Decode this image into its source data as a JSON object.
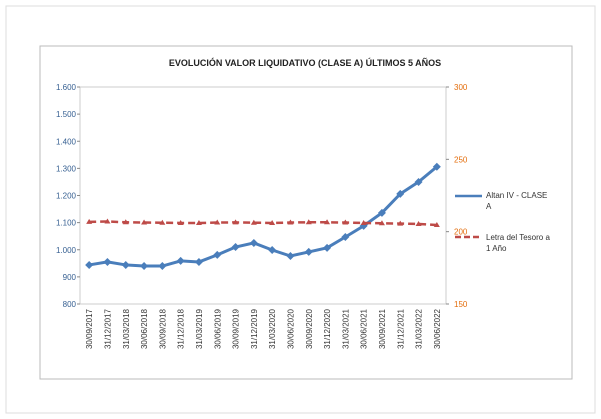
{
  "chart_data": {
    "type": "line",
    "title": "EVOLUCIÓN VALOR LIQUIDATIVO (CLASE A) ÚLTIMOS 5 AÑOS",
    "categories": [
      "30/09/2017",
      "31/12/2017",
      "31/03/2018",
      "30/06/2018",
      "30/09/2018",
      "31/12/2018",
      "31/03/2019",
      "30/06/2019",
      "30/09/2019",
      "31/12/2019",
      "31/03/2020",
      "30/06/2020",
      "30/09/2020",
      "31/12/2020",
      "31/03/2021",
      "30/06/2021",
      "30/09/2021",
      "31/12/2021",
      "31/03/2022",
      "30/06/2022"
    ],
    "series": [
      {
        "name": "Altan IV - CLASE A",
        "color": "#4a7ebb",
        "values": [
          944,
          955,
          944,
          940,
          940,
          959,
          955,
          981,
          1010,
          1025,
          999,
          977,
          992,
          1007,
          1047,
          1088,
          1136,
          1206,
          1250,
          1306
        ]
      },
      {
        "name": "Letra del Tesoro a 1 Año",
        "color": "#be4b48",
        "axis": "y2",
        "values": [
          206.8,
          207,
          206.5,
          206.3,
          206.2,
          206,
          206,
          206.3,
          206.4,
          206.2,
          206,
          206.3,
          206.5,
          206.5,
          206.3,
          206,
          205.8,
          205.6,
          205.3,
          204.6
        ]
      }
    ],
    "ylim": [
      800,
      1600
    ],
    "yticks": [
      {
        "value": 800,
        "label": "800"
      },
      {
        "value": 900,
        "label": "900"
      },
      {
        "value": 1000,
        "label": "1.000"
      },
      {
        "value": 1100,
        "label": "1.100"
      },
      {
        "value": 1200,
        "label": "1.200"
      },
      {
        "value": 1300,
        "label": "1.300"
      },
      {
        "value": 1400,
        "label": "1.400"
      },
      {
        "value": 1500,
        "label": "1.500"
      },
      {
        "value": 1600,
        "label": "1.600"
      }
    ],
    "y2lim": [
      150,
      300
    ],
    "y2ticks": [
      150,
      200,
      250,
      300
    ],
    "y2color": "#e36c0a",
    "ycolor": "#376092"
  }
}
